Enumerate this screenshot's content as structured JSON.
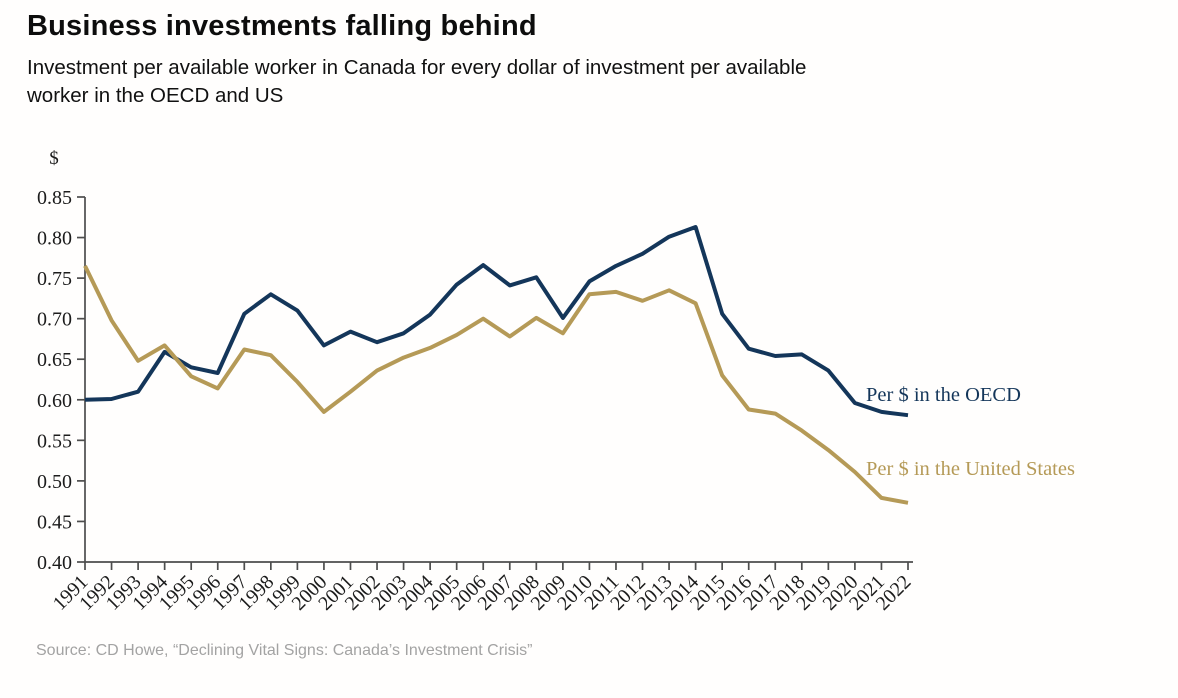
{
  "header": {
    "title": "Business investments falling behind",
    "subtitle_line1": "Investment per available worker in Canada for every dollar of investment per available",
    "subtitle_line2": "worker in the OECD and US"
  },
  "footer": {
    "source": "Source: CD Howe, “Declining Vital Signs: Canada’s Investment Crisis”"
  },
  "chart_data": {
    "type": "line",
    "title": "Business investments falling behind",
    "xlabel": "",
    "ylabel": "$",
    "ylim": [
      0.4,
      0.85
    ],
    "ytick_step": 0.05,
    "grid": false,
    "legend_position": "inline-right-of-lines",
    "axis_color": "#4d4d4d",
    "tick_label_color": "#1c1c1c",
    "x": [
      1991,
      1992,
      1993,
      1994,
      1995,
      1996,
      1997,
      1998,
      1999,
      2000,
      2001,
      2002,
      2003,
      2004,
      2005,
      2006,
      2007,
      2008,
      2009,
      2010,
      2011,
      2012,
      2013,
      2014,
      2015,
      2016,
      2017,
      2018,
      2019,
      2020,
      2021,
      2022
    ],
    "series": [
      {
        "id": "oecd",
        "name": "Per $ in the OECD",
        "color": "#14365a",
        "values": [
          0.6,
          0.601,
          0.61,
          0.659,
          0.64,
          0.633,
          0.706,
          0.73,
          0.71,
          0.667,
          0.684,
          0.671,
          0.682,
          0.705,
          0.742,
          0.766,
          0.741,
          0.751,
          0.701,
          0.746,
          0.765,
          0.78,
          0.801,
          0.813,
          0.706,
          0.663,
          0.654,
          0.656,
          0.636,
          0.596,
          0.585,
          0.581
        ]
      },
      {
        "id": "us",
        "name": "Per $ in the United States",
        "color": "#b59a57",
        "values": [
          0.765,
          0.698,
          0.648,
          0.667,
          0.629,
          0.614,
          0.662,
          0.655,
          0.622,
          0.585,
          0.61,
          0.636,
          0.652,
          0.664,
          0.68,
          0.7,
          0.678,
          0.701,
          0.682,
          0.73,
          0.733,
          0.722,
          0.735,
          0.719,
          0.63,
          0.588,
          0.583,
          0.562,
          0.538,
          0.511,
          0.479,
          0.473
        ]
      }
    ]
  }
}
